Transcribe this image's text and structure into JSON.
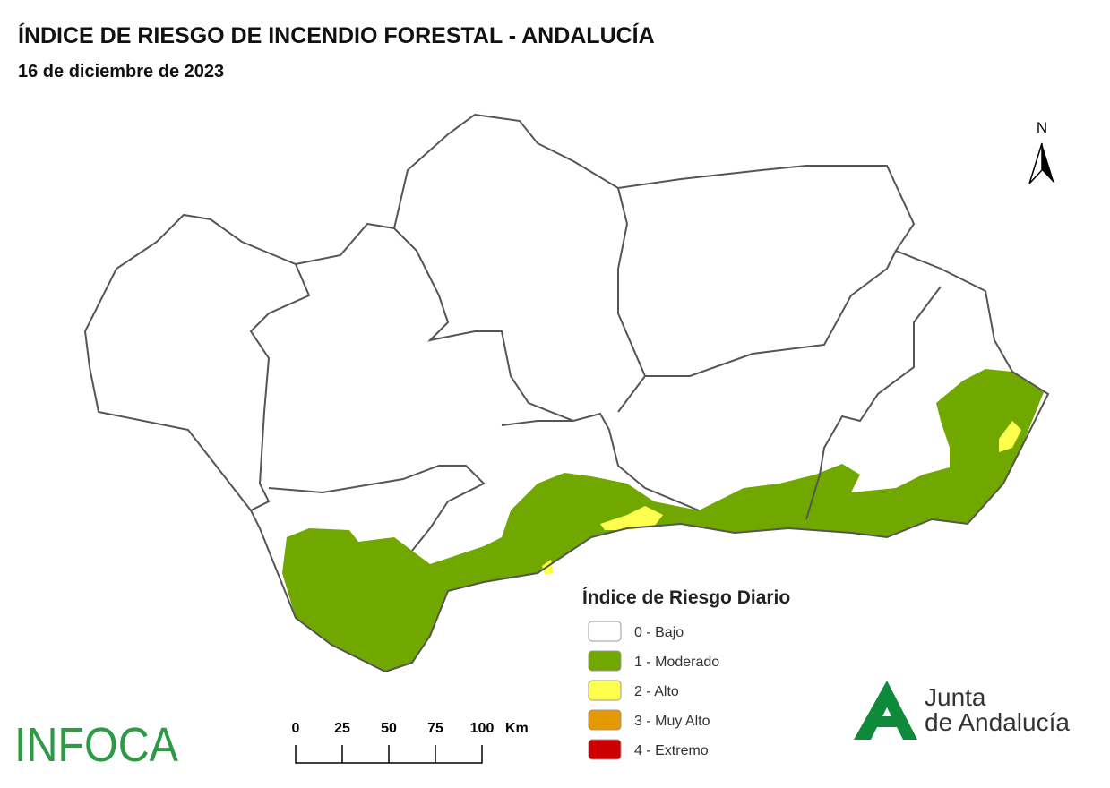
{
  "header": {
    "title": "ÍNDICE DE RIESGO DE INCENDIO FORESTAL - ANDALUCÍA",
    "subtitle": "16 de diciembre de 2023"
  },
  "north": "N",
  "legend": {
    "title": "Índice de Riesgo Diario",
    "items": [
      {
        "label": "0 - Bajo",
        "color": "#ffffff"
      },
      {
        "label": "1 - Moderado",
        "color": "#70a800"
      },
      {
        "label": "2 - Alto",
        "color": "#ffff4d"
      },
      {
        "label": "3 - Muy Alto",
        "color": "#e69800"
      },
      {
        "label": "4 - Extremo",
        "color": "#cc0000"
      }
    ]
  },
  "scale": {
    "labels": [
      "0",
      "25",
      "50",
      "75",
      "100"
    ],
    "unit": "Km"
  },
  "logos": {
    "infoca": "INFOCA",
    "junta": [
      "Junta",
      "de Andalucía"
    ]
  }
}
